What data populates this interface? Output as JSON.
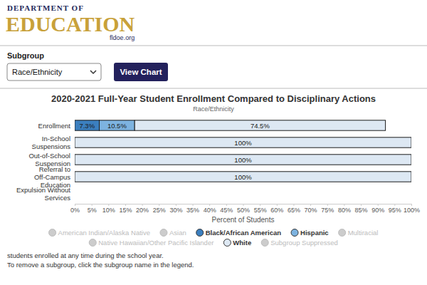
{
  "header": {
    "logo_top": "DEPARTMENT OF",
    "logo_main": "EDUCATION",
    "logo_url": "fldoe.org"
  },
  "controls": {
    "label": "Subgroup",
    "selected": "Race/Ethnicity",
    "button": "View Chart"
  },
  "chart_data": {
    "type": "bar",
    "orientation": "horizontal",
    "stacked": true,
    "data_labels": true,
    "grid": false,
    "legend": "bottom",
    "title": "2020-2021 Full-Year Student Enrollment Compared to Disciplinary Actions",
    "subtitle": "Race/Ethnicity",
    "x_label": "Percent of Students",
    "categories": [
      "Enrollment",
      "In-School Suspensions",
      "Out-of-School Suspension",
      "Referral to Off-Campus Education",
      "Expulsion Without Services"
    ],
    "series": [
      {
        "name": "American Indian/Alaska Native",
        "color": "#cccccc",
        "values": [
          null,
          null,
          null,
          null,
          null
        ]
      },
      {
        "name": "Asian",
        "color": "#cccccc",
        "values": [
          null,
          null,
          null,
          null,
          null
        ]
      },
      {
        "name": "Black/African American",
        "color": "#3b7fbf",
        "values": [
          7.3,
          null,
          null,
          null,
          null
        ],
        "value_labels": [
          "7.3%",
          null,
          null,
          null,
          null
        ]
      },
      {
        "name": "Hispanic",
        "color": "#7db3e0",
        "values": [
          10.5,
          null,
          null,
          null,
          null
        ],
        "value_labels": [
          "10.5%",
          null,
          null,
          null,
          null
        ]
      },
      {
        "name": "Multiracial",
        "color": "#cccccc",
        "values": [
          null,
          null,
          null,
          null,
          null
        ]
      },
      {
        "name": "Native Hawaiian/Other Pacific Islander",
        "color": "#cccccc",
        "values": [
          null,
          null,
          null,
          null,
          null
        ]
      },
      {
        "name": "White",
        "color": "#dde8f3",
        "values": [
          74.5,
          100,
          100,
          100,
          null
        ],
        "value_labels": [
          "74.5%",
          "100%",
          "100%",
          "100%",
          null
        ]
      },
      {
        "name": "Subgroup Suppressed",
        "color": "#cccccc",
        "values": [
          null,
          null,
          null,
          null,
          null
        ]
      }
    ],
    "xlim": [
      0,
      100
    ],
    "xticks": [
      {
        "value": 0,
        "label": "0%"
      },
      {
        "value": 5,
        "label": "5%"
      },
      {
        "value": 10,
        "label": "10%"
      },
      {
        "value": 15,
        "label": "15%"
      },
      {
        "value": 20,
        "label": "20%"
      },
      {
        "value": 25,
        "label": "25%"
      },
      {
        "value": 30,
        "label": "30%"
      },
      {
        "value": 35,
        "label": "35%"
      },
      {
        "value": 40,
        "label": "40%"
      },
      {
        "value": 45,
        "label": "45%"
      },
      {
        "value": 50,
        "label": "50%"
      },
      {
        "value": 55,
        "label": "55%"
      },
      {
        "value": 60,
        "label": "60%"
      },
      {
        "value": 65,
        "label": "65%"
      },
      {
        "value": 70,
        "label": "70%"
      },
      {
        "value": 75,
        "label": "75%"
      },
      {
        "value": 80,
        "label": "80%"
      },
      {
        "value": 85,
        "label": "85%"
      },
      {
        "value": 90,
        "label": "90%"
      },
      {
        "value": 95,
        "label": "95%"
      },
      {
        "value": 100,
        "label": "100%"
      }
    ]
  },
  "notes": [
    "students enrolled at any time during the school year.",
    "To remove a subgroup, click the subgroup name in the legend."
  ]
}
